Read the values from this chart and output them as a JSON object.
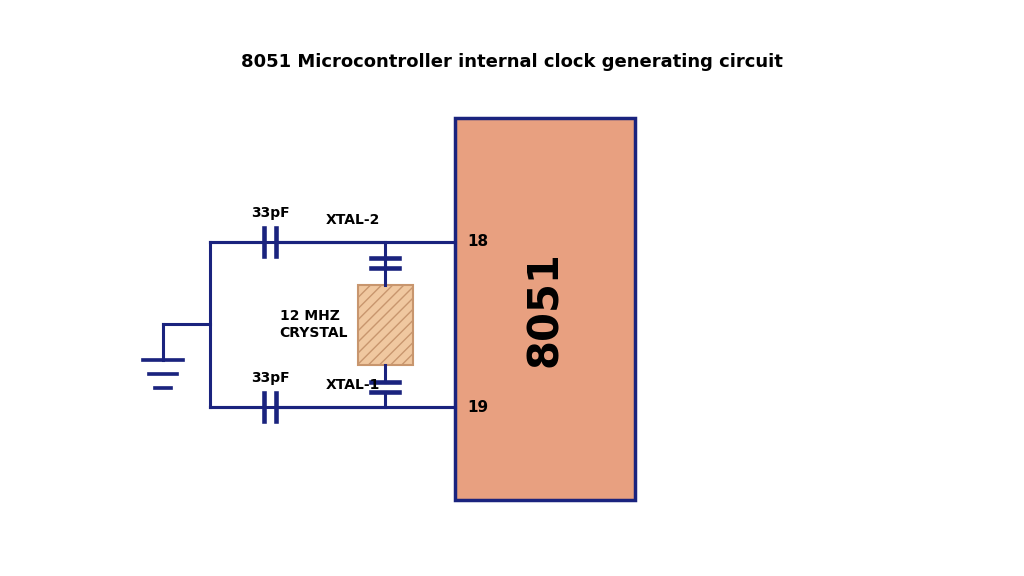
{
  "title": "8051 Microcontroller internal clock generating circuit",
  "title_fontsize": 13,
  "title_fontweight": "bold",
  "bg_color": "#ffffff",
  "line_color": "#1a237e",
  "line_width": 2.2,
  "chip_color": "#e8a080",
  "chip_edge_color": "#1a237e",
  "chip_label": "8051",
  "chip_label_fontsize": 30,
  "chip_label_fontweight": "bold",
  "crystal_color": "#f0c8a0",
  "crystal_hatch": "///",
  "crystal_hatch_color": "#c8966e",
  "pin18_label": "18",
  "pin19_label": "19",
  "xtal2_label": "XTAL-2",
  "xtal1_label": "XTAL-1",
  "cap_label_top": "33pF",
  "cap_label_bot": "33pF",
  "mhz_label": "12 MHZ\nCRYSTAL"
}
